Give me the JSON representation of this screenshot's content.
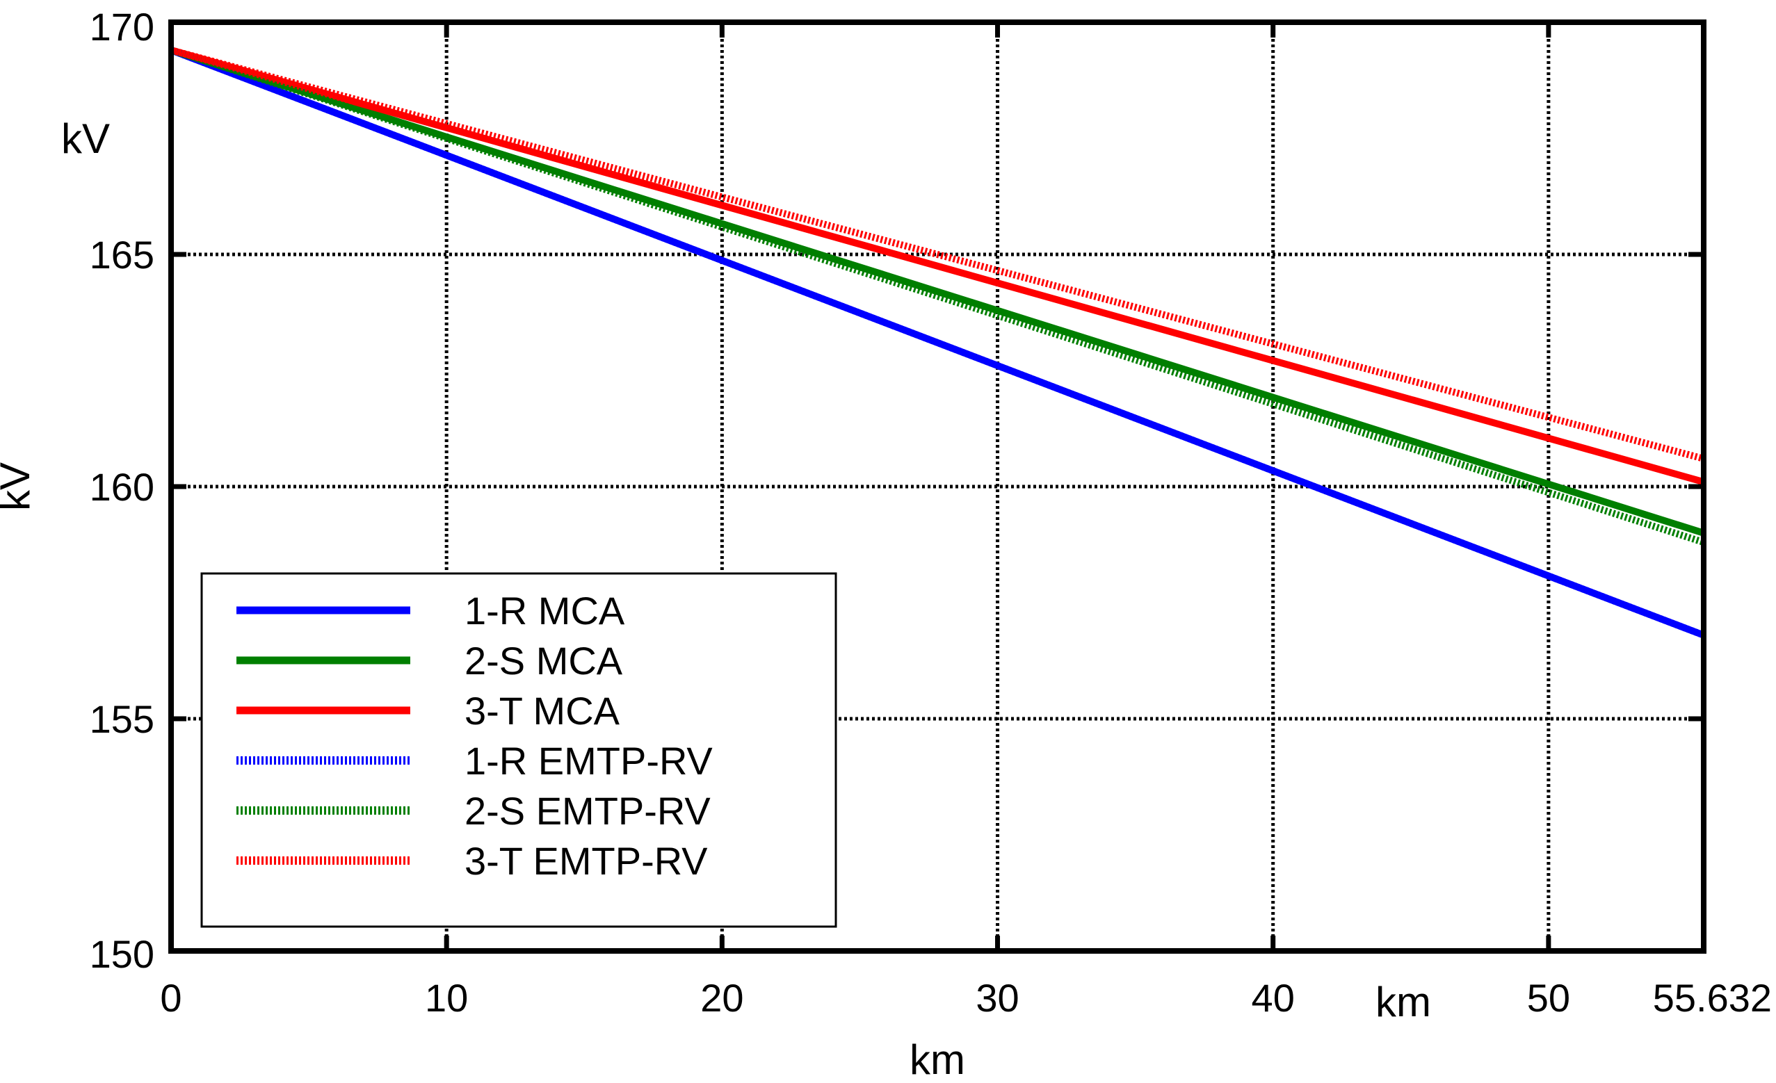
{
  "chart_data": {
    "type": "line",
    "title": "",
    "xlabel": "km",
    "ylabel": "kV",
    "x_unit_annotation": "km",
    "y_unit_annotation": "kV",
    "xlim": [
      0,
      55.632
    ],
    "ylim": [
      150,
      170
    ],
    "xticks": [
      0,
      10,
      20,
      30,
      40,
      50,
      55.632
    ],
    "xtick_labels": [
      "0",
      "10",
      "20",
      "30",
      "40",
      "50",
      "55.632"
    ],
    "yticks": [
      150,
      155,
      160,
      165,
      170
    ],
    "ytick_labels": [
      "150",
      "155",
      "160",
      "165",
      "170"
    ],
    "grid": true,
    "legend_position": "bottom-left",
    "series": [
      {
        "name": "1-R MCA",
        "color": "#0000ff",
        "style": "solid",
        "x": [
          0,
          55.632
        ],
        "y": [
          169.4,
          156.8
        ]
      },
      {
        "name": "2-S MCA",
        "color": "#007f00",
        "style": "solid",
        "x": [
          0,
          55.632
        ],
        "y": [
          169.4,
          159.0
        ]
      },
      {
        "name": "3-T MCA",
        "color": "#ff0000",
        "style": "solid",
        "x": [
          0,
          55.632
        ],
        "y": [
          169.4,
          160.1
        ]
      },
      {
        "name": "1-R EMTP-RV",
        "color": "#0000ff",
        "style": "dotted",
        "x": [
          0,
          55.632
        ],
        "y": [
          169.4,
          156.8
        ]
      },
      {
        "name": "2-S EMTP-RV",
        "color": "#007f00",
        "style": "dotted",
        "x": [
          0,
          55.632
        ],
        "y": [
          169.4,
          158.8
        ]
      },
      {
        "name": "3-T EMTP-RV",
        "color": "#ff0000",
        "style": "dotted",
        "x": [
          0,
          55.632
        ],
        "y": [
          169.4,
          160.6
        ]
      }
    ]
  }
}
